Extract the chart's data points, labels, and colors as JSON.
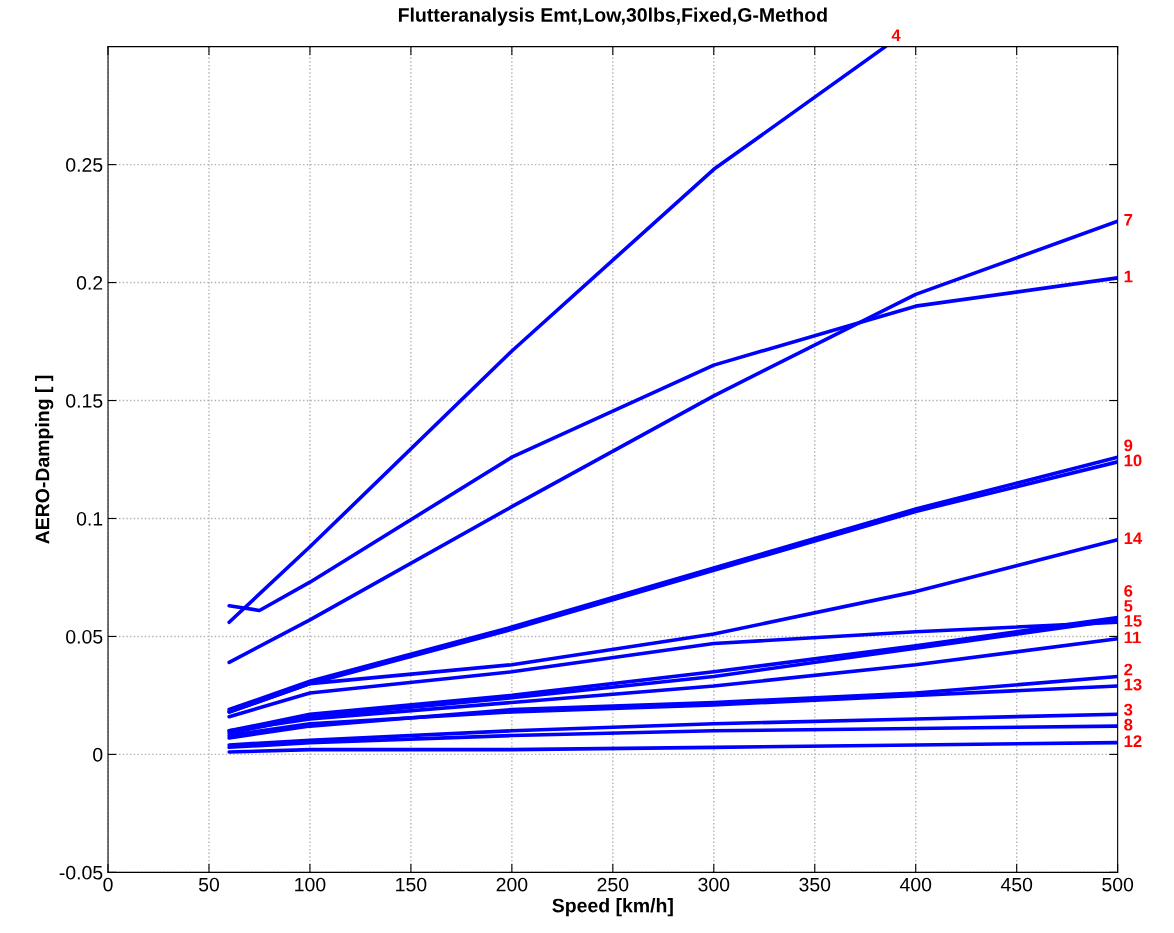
{
  "chart_data": {
    "type": "line",
    "title": "Flutteranalysis Emt,Low,30lbs,Fixed,G-Method",
    "xlabel": "Speed [km/h]",
    "ylabel": "AERO-Damping [ ]",
    "x": [
      60,
      100,
      200,
      300,
      400,
      500
    ],
    "xlim": [
      0,
      500
    ],
    "xticks": [
      0,
      50,
      100,
      150,
      200,
      250,
      300,
      350,
      400,
      450,
      500
    ],
    "ylim": [
      -0.05,
      0.3
    ],
    "yticks": [
      -0.05,
      0,
      0.05,
      0.1,
      0.15,
      0.2,
      0.25
    ],
    "grid": true,
    "legend": false,
    "marker": "none",
    "line_style": "solid",
    "series": [
      {
        "name": "4",
        "color": "#0000ff",
        "x": [
          60,
          100,
          200,
          300,
          385
        ],
        "values": [
          0.056,
          0.088,
          0.171,
          0.248,
          0.3
        ]
      },
      {
        "name": "1",
        "color": "#0000ff",
        "x": [
          60,
          75,
          100,
          200,
          300,
          400,
          500
        ],
        "values": [
          0.063,
          0.061,
          0.073,
          0.126,
          0.165,
          0.19,
          0.202
        ]
      },
      {
        "name": "7",
        "color": "#0000ff",
        "values": [
          0.039,
          0.057,
          0.105,
          0.152,
          0.195,
          0.226
        ]
      },
      {
        "name": "9",
        "color": "#0000ff",
        "values": [
          0.019,
          0.031,
          0.054,
          0.079,
          0.104,
          0.126
        ]
      },
      {
        "name": "10",
        "color": "#0000ff",
        "values": [
          0.018,
          0.03,
          0.053,
          0.078,
          0.103,
          0.124
        ]
      },
      {
        "name": "14",
        "color": "#0000ff",
        "values": [
          0.018,
          0.03,
          0.038,
          0.051,
          0.069,
          0.091
        ]
      },
      {
        "name": "15",
        "color": "#0000ff",
        "values": [
          0.016,
          0.026,
          0.035,
          0.047,
          0.052,
          0.056
        ]
      },
      {
        "name": "6",
        "color": "#0000ff",
        "values": [
          0.01,
          0.017,
          0.025,
          0.035,
          0.046,
          0.058
        ]
      },
      {
        "name": "5",
        "color": "#0000ff",
        "values": [
          0.009,
          0.016,
          0.024,
          0.033,
          0.045,
          0.057
        ]
      },
      {
        "name": "11",
        "color": "#0000ff",
        "values": [
          0.01,
          0.015,
          0.022,
          0.029,
          0.038,
          0.049
        ]
      },
      {
        "name": "2",
        "color": "#0000ff",
        "values": [
          0.007,
          0.012,
          0.019,
          0.022,
          0.026,
          0.033
        ]
      },
      {
        "name": "13",
        "color": "#0000ff",
        "values": [
          0.008,
          0.013,
          0.018,
          0.021,
          0.025,
          0.029
        ]
      },
      {
        "name": "3",
        "color": "#0000ff",
        "values": [
          0.004,
          0.006,
          0.01,
          0.013,
          0.015,
          0.017
        ]
      },
      {
        "name": "8",
        "color": "#0000ff",
        "values": [
          0.003,
          0.005,
          0.008,
          0.01,
          0.011,
          0.012
        ]
      },
      {
        "name": "12",
        "color": "#0000ff",
        "values": [
          0.001,
          0.002,
          0.002,
          0.003,
          0.004,
          0.005
        ]
      }
    ]
  }
}
